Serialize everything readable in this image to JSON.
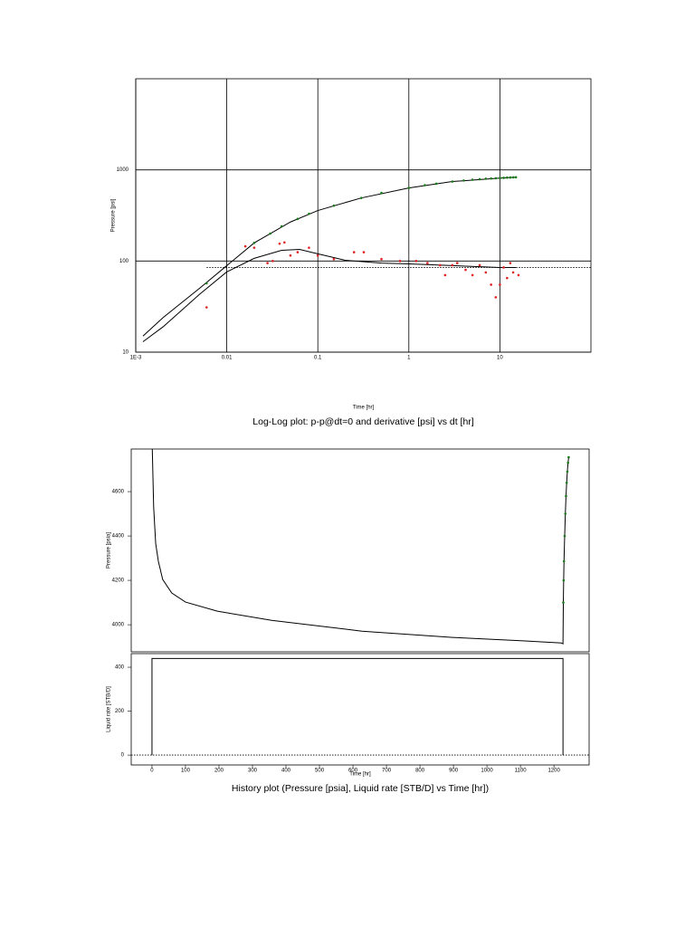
{
  "chart_data": [
    {
      "type": "line",
      "caption": "Log-Log plot: p-p@dt=0 and derivative [psi] vs dt [hr]",
      "x_label": "Time [hr]",
      "y_label": "Pressure [psi]",
      "x_log": true,
      "y_log": true,
      "xlim": [
        0.001,
        100
      ],
      "ylim": [
        10,
        10000
      ],
      "xticks": [
        {
          "value": 0.001,
          "label": "1E-3"
        },
        0.01,
        0.1,
        1,
        10
      ],
      "yticks": [
        10,
        100,
        1000
      ],
      "grid": true,
      "series": [
        {
          "mode": "line",
          "color": "#000000",
          "x": [
            0.0012,
            0.002,
            0.005,
            0.01,
            0.02,
            0.05,
            0.1,
            0.3,
            1,
            3,
            10,
            15
          ],
          "values": [
            15,
            24,
            50,
            89,
            158,
            268,
            358,
            492,
            634,
            745,
            813,
            830
          ]
        },
        {
          "mode": "line",
          "color": "#000000",
          "x": [
            0.0012,
            0.002,
            0.005,
            0.01,
            0.02,
            0.04,
            0.063,
            0.1,
            0.2,
            0.5,
            1,
            3,
            10,
            15
          ],
          "values": [
            13,
            19,
            43,
            76,
            107,
            131,
            134,
            120,
            102,
            95,
            93,
            89,
            85,
            85
          ]
        },
        {
          "mode": "dotted",
          "color": "#000000",
          "x": [
            0.006,
            100
          ],
          "values": [
            85,
            85
          ]
        },
        {
          "mode": "markers",
          "color": "#1a7a1a",
          "x": [
            0.006,
            0.02,
            0.03,
            0.04,
            0.06,
            0.08,
            0.15,
            0.3,
            0.5,
            1,
            1.5,
            2,
            3,
            4,
            5,
            6,
            7,
            8,
            9,
            10,
            11,
            12,
            13,
            14,
            15
          ],
          "values": [
            57,
            158,
            200,
            240,
            290,
            330,
            405,
            492,
            560,
            634,
            680,
            705,
            745,
            765,
            780,
            790,
            800,
            805,
            810,
            813,
            818,
            822,
            825,
            828,
            830
          ]
        },
        {
          "mode": "markers",
          "color": "#e02020",
          "x": [
            0.006,
            0.016,
            0.02,
            0.028,
            0.032,
            0.038,
            0.043,
            0.05,
            0.06,
            0.08,
            0.1,
            0.15,
            0.25,
            0.32,
            0.5,
            0.8,
            1.2,
            1.6,
            2.2,
            2.5,
            3,
            3.4,
            4.2,
            5,
            6,
            7,
            8,
            9,
            10,
            11,
            12,
            13,
            14,
            16
          ],
          "values": [
            31,
            145,
            140,
            95,
            100,
            155,
            160,
            115,
            125,
            140,
            115,
            105,
            125,
            125,
            105,
            100,
            100,
            95,
            90,
            70,
            90,
            95,
            80,
            70,
            90,
            75,
            55,
            40,
            55,
            85,
            65,
            95,
            75,
            70
          ]
        }
      ]
    },
    {
      "type": "line",
      "y_label": "Pressure [psia]",
      "xlim": [
        -62,
        1305
      ],
      "ylim": [
        3878,
        4792
      ],
      "yticks": [
        4000,
        4200,
        4400,
        4600
      ],
      "grid": false,
      "series": [
        {
          "mode": "line",
          "color": "#000000",
          "x": [
            0,
            5,
            11,
            19,
            32,
            59,
            100,
            195,
            357,
            627,
            897,
            1114,
            1222,
            1227,
            1228,
            1229,
            1230,
            1232,
            1234,
            1236,
            1238,
            1240,
            1242,
            1244
          ],
          "values": [
            4850,
            4530,
            4367,
            4286,
            4204,
            4143,
            4102,
            4061,
            4020,
            3971,
            3943,
            3927,
            3918,
            3914,
            4100,
            4200,
            4286,
            4400,
            4500,
            4580,
            4640,
            4690,
            4730,
            4755
          ]
        },
        {
          "mode": "markers",
          "color": "#1a7a1a",
          "x": [
            1228,
            1229,
            1230,
            1232,
            1234,
            1236,
            1238,
            1240,
            1242,
            1244
          ],
          "values": [
            4100,
            4200,
            4286,
            4400,
            4500,
            4580,
            4640,
            4690,
            4730,
            4755
          ]
        }
      ]
    },
    {
      "type": "line",
      "caption": "History plot (Pressure [psia], Liquid rate [STB/D] vs Time [hr])",
      "x_label": "Time [hr]",
      "y_label": "Liquid rate [STB/D]",
      "xlim": [
        -62,
        1305
      ],
      "ylim": [
        -45,
        462
      ],
      "xticks": [
        0,
        100,
        200,
        300,
        400,
        500,
        600,
        700,
        800,
        900,
        1000,
        1100,
        1200
      ],
      "yticks": [
        0,
        200,
        400
      ],
      "grid": false,
      "series": [
        {
          "mode": "line",
          "color": "#000000",
          "x": [
            0,
            0,
            1227,
            1227
          ],
          "values": [
            0,
            440,
            440,
            0
          ]
        },
        {
          "mode": "dotted",
          "color": "#000000",
          "x": [
            -62,
            1305
          ],
          "values": [
            0,
            0
          ]
        }
      ]
    }
  ]
}
